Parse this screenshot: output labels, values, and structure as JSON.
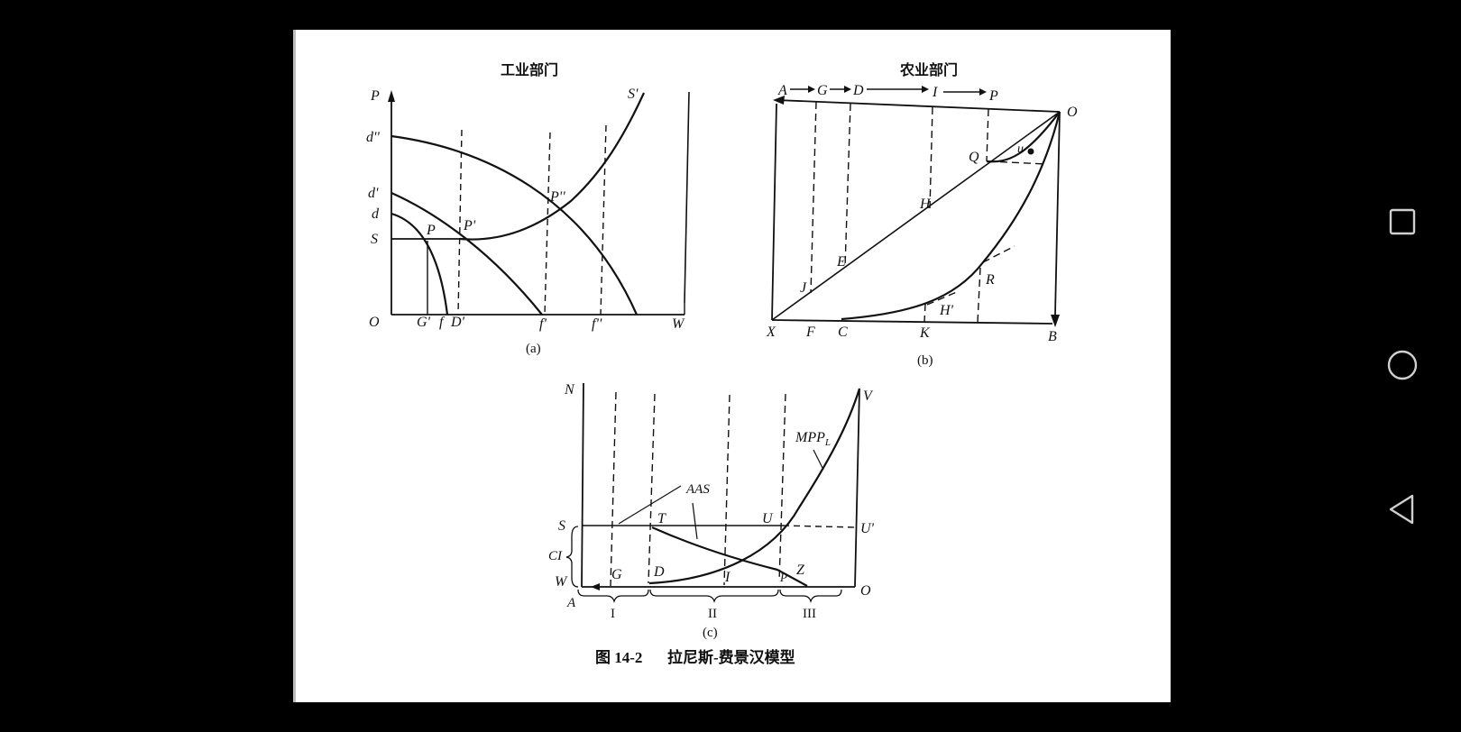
{
  "document": {
    "panel_a": {
      "title": "工业部门",
      "caption": "(a)",
      "labels": {
        "P": "P",
        "S_prime": "S'",
        "d_dprime": "d''",
        "d_prime": "d'",
        "d": "d",
        "S": "S",
        "P_pt": "P",
        "P_prime": "P'",
        "P_dprime": "P''",
        "O": "O",
        "G_prime": "G'",
        "f": "f",
        "D_prime": "D'",
        "f_prime": "f'",
        "f_dprime": "f''",
        "W": "W"
      }
    },
    "panel_b": {
      "title": "农业部门",
      "caption": "(b)",
      "labels": {
        "A": "A",
        "G": "G",
        "D": "D",
        "I": "I",
        "P": "P",
        "O": "O",
        "Q": "Q",
        "u": "u",
        "H": "H",
        "E": "E",
        "J": "J",
        "R": "R",
        "H_prime": "H'",
        "X": "X",
        "F": "F",
        "C": "C",
        "K": "K",
        "B": "B"
      }
    },
    "panel_c": {
      "caption": "(c)",
      "labels": {
        "N": "N",
        "V": "V",
        "MPP": "MPP",
        "MPP_sub": "L",
        "AAS": "AAS",
        "S": "S",
        "T": "T",
        "U": "U",
        "U_prime": "U'",
        "CI": "CI",
        "W": "W",
        "G": "G",
        "D": "D",
        "I": "I",
        "P": "P",
        "Z": "Z",
        "O": "O",
        "A": "A",
        "range_1": "I",
        "range_2": "II",
        "range_3": "III"
      }
    },
    "figure_caption": {
      "number": "图 14-2",
      "title": "拉尼斯-费景汉模型"
    }
  },
  "nav_icons": [
    "recents-square-icon",
    "home-circle-icon",
    "back-triangle-icon"
  ]
}
